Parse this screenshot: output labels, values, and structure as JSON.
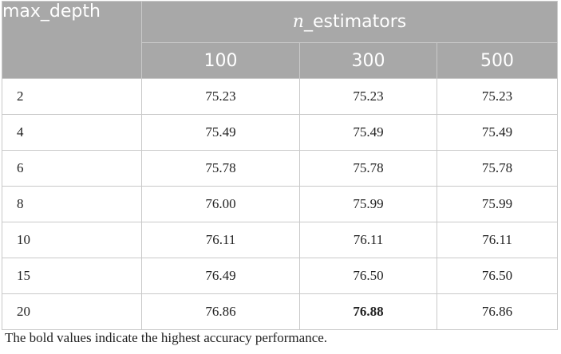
{
  "table": {
    "corner_header": "max_depth",
    "group_header_var": "n",
    "group_header_rest": "_estimators",
    "columns": [
      "100",
      "300",
      "500"
    ],
    "rows": [
      {
        "depth": "2",
        "values": [
          "75.23",
          "75.23",
          "75.23"
        ]
      },
      {
        "depth": "4",
        "values": [
          "75.49",
          "75.49",
          "75.49"
        ]
      },
      {
        "depth": "6",
        "values": [
          "75.78",
          "75.78",
          "75.78"
        ]
      },
      {
        "depth": "8",
        "values": [
          "76.00",
          "75.99",
          "75.99"
        ]
      },
      {
        "depth": "10",
        "values": [
          "76.11",
          "76.11",
          "76.11"
        ]
      },
      {
        "depth": "15",
        "values": [
          "76.49",
          "76.50",
          "76.50"
        ]
      },
      {
        "depth": "20",
        "values": [
          "76.86",
          "76.88",
          "76.86"
        ]
      }
    ],
    "bold_cells": [
      {
        "row": 6,
        "col": 1
      }
    ]
  },
  "footnote": "The bold values indicate the highest accuracy performance.",
  "colors": {
    "header_background": "#a8a8a8",
    "header_text": "#ffffff",
    "grid_lines": "#c9c9c9",
    "body_text": "#222222"
  }
}
